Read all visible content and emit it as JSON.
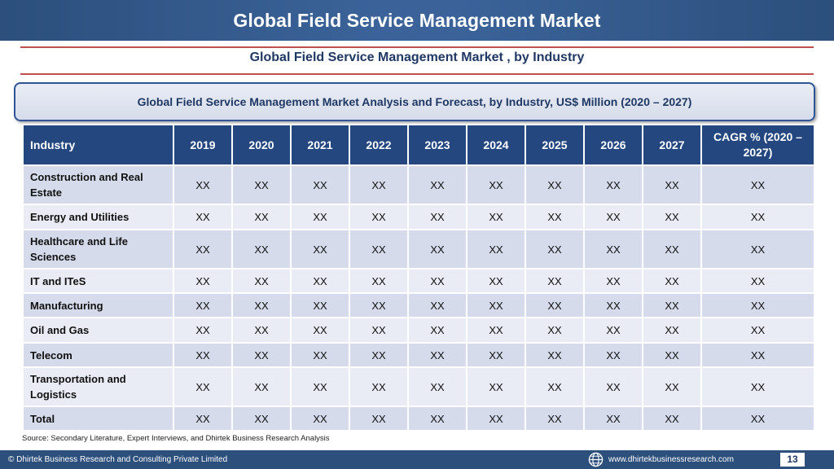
{
  "header": {
    "title": "Global Field Service Management Market"
  },
  "subtitle": "Global Field Service Management Market , by Industry",
  "analysis_title": "Global Field Service Management Market  Analysis and Forecast, by Industry, US$ Million (2020 – 2027)",
  "table": {
    "headers": [
      "Industry",
      "2019",
      "2020",
      "2021",
      "2022",
      "2023",
      "2024",
      "2025",
      "2026",
      "2027",
      "CAGR % (2020 – 2027)"
    ],
    "rows": [
      {
        "industry": "Construction and Real Estate",
        "values": [
          "XX",
          "XX",
          "XX",
          "XX",
          "XX",
          "XX",
          "XX",
          "XX",
          "XX",
          "XX"
        ]
      },
      {
        "industry": "Energy and Utilities",
        "values": [
          "XX",
          "XX",
          "XX",
          "XX",
          "XX",
          "XX",
          "XX",
          "XX",
          "XX",
          "XX"
        ]
      },
      {
        "industry": "Healthcare and Life Sciences",
        "values": [
          "XX",
          "XX",
          "XX",
          "XX",
          "XX",
          "XX",
          "XX",
          "XX",
          "XX",
          "XX"
        ]
      },
      {
        "industry": "IT and ITeS",
        "values": [
          "XX",
          "XX",
          "XX",
          "XX",
          "XX",
          "XX",
          "XX",
          "XX",
          "XX",
          "XX"
        ]
      },
      {
        "industry": "Manufacturing",
        "values": [
          "XX",
          "XX",
          "XX",
          "XX",
          "XX",
          "XX",
          "XX",
          "XX",
          "XX",
          "XX"
        ]
      },
      {
        "industry": "Oil and Gas",
        "values": [
          "XX",
          "XX",
          "XX",
          "XX",
          "XX",
          "XX",
          "XX",
          "XX",
          "XX",
          "XX"
        ]
      },
      {
        "industry": "Telecom",
        "values": [
          "XX",
          "XX",
          "XX",
          "XX",
          "XX",
          "XX",
          "XX",
          "XX",
          "XX",
          "XX"
        ]
      },
      {
        "industry": "Transportation and Logistics",
        "values": [
          "XX",
          "XX",
          "XX",
          "XX",
          "XX",
          "XX",
          "XX",
          "XX",
          "XX",
          "XX"
        ]
      },
      {
        "industry": "Total",
        "values": [
          "XX",
          "XX",
          "XX",
          "XX",
          "XX",
          "XX",
          "XX",
          "XX",
          "XX",
          "XX"
        ]
      }
    ]
  },
  "source": "Source: Secondary Literature, Expert Interviews, and Dhirtek Business Research Analysis",
  "footer": {
    "copyright": "© Dhirtek Business Research and Consulting Private Limited",
    "website": "www.dhirtekbusinessresearch.com",
    "page_number": "13",
    "globe_icon": "globe-icon"
  },
  "colors": {
    "banner": "#2c4f7c",
    "table_header": "#24477f",
    "row_dark": "#d5dbea",
    "row_light": "#e9ecf4",
    "accent_line": "#c0504d",
    "title_text": "#1f3864"
  }
}
